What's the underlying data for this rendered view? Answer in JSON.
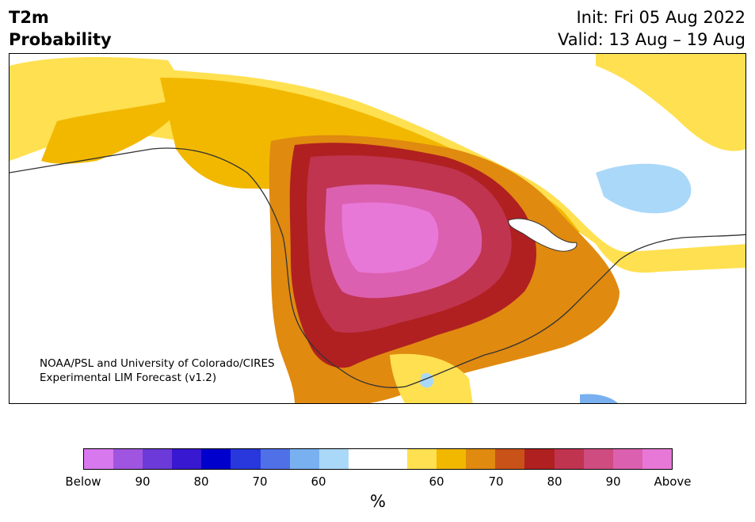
{
  "header": {
    "variable": "T2m",
    "metric": "Probability",
    "init": "Init: Fri 05 Aug 2022",
    "valid": "Valid: 13 Aug – 19 Aug"
  },
  "map": {
    "credit_line1": "NOAA/PSL and University of Colorado/CIRES",
    "credit_line2": "Experimental LIM Forecast (v1.2)"
  },
  "colorbar": {
    "colors": [
      "#d878ee",
      "#a055e0",
      "#6c3ad8",
      "#3818d0",
      "#0000cc",
      "#2838dc",
      "#5070e8",
      "#78b0f0",
      "#aad8f8",
      "#ffffff",
      "#ffffff",
      "#ffe050",
      "#f2b800",
      "#e08a10",
      "#c85218",
      "#b02020",
      "#c03450",
      "#cf4c80",
      "#dc60b0",
      "#e878d8"
    ],
    "tick_labels": [
      "Below",
      "90",
      "80",
      "70",
      "60",
      "60",
      "70",
      "80",
      "90",
      "Above"
    ],
    "units": "%"
  }
}
